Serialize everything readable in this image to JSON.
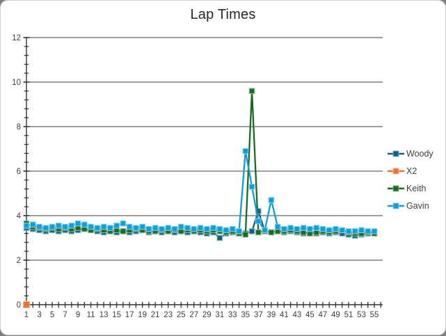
{
  "chart_data": {
    "type": "line",
    "title": "Lap Times",
    "xlabel": "",
    "ylabel": "",
    "x": [
      1,
      2,
      3,
      4,
      5,
      6,
      7,
      8,
      9,
      10,
      11,
      12,
      13,
      14,
      15,
      16,
      17,
      18,
      19,
      20,
      21,
      22,
      23,
      24,
      25,
      26,
      27,
      28,
      29,
      30,
      31,
      32,
      33,
      34,
      35,
      36,
      37,
      38,
      39,
      40,
      41,
      42,
      43,
      44,
      45,
      46,
      47,
      48,
      49,
      50,
      51,
      52,
      53,
      54,
      55
    ],
    "xlim": [
      1,
      56
    ],
    "ylim": [
      0,
      12
    ],
    "y_major_unit": 2,
    "y_minor_unit": 0.4,
    "x_label_step": 2,
    "grid": "horizontal-major",
    "legend_position": "right",
    "series": [
      {
        "name": "Woody",
        "color": "#156082",
        "marker": "square",
        "values": [
          3.45,
          3.4,
          3.35,
          3.3,
          3.35,
          3.3,
          3.35,
          3.3,
          3.35,
          3.4,
          3.35,
          3.3,
          3.25,
          3.3,
          3.25,
          3.3,
          3.25,
          3.3,
          3.35,
          3.25,
          3.3,
          3.25,
          3.3,
          3.25,
          3.3,
          3.25,
          3.3,
          3.25,
          3.2,
          3.25,
          3.0,
          3.2,
          3.25,
          3.2,
          3.2,
          3.3,
          4.2,
          3.3,
          3.25,
          3.3,
          3.25,
          3.3,
          3.25,
          3.2,
          3.25,
          3.2,
          3.25,
          3.2,
          3.25,
          3.2,
          3.15,
          3.1,
          3.15,
          3.2,
          3.25
        ]
      },
      {
        "name": "X2",
        "color": "#E97132",
        "marker": "square",
        "values": [
          0,
          null,
          null,
          null,
          null,
          null,
          null,
          null,
          null,
          null,
          null,
          null,
          null,
          null,
          null,
          null,
          null,
          null,
          null,
          null,
          null,
          null,
          null,
          null,
          null,
          null,
          null,
          null,
          null,
          null,
          null,
          null,
          null,
          null,
          null,
          null,
          null,
          null,
          null,
          null,
          null,
          null,
          null,
          null,
          null,
          null,
          null,
          null,
          null,
          null,
          null,
          null,
          null,
          null,
          null
        ]
      },
      {
        "name": "Keith",
        "color": "#196B24",
        "marker": "square",
        "values": [
          3.65,
          3.5,
          3.45,
          3.4,
          3.45,
          3.4,
          3.45,
          3.4,
          3.45,
          3.4,
          3.35,
          3.4,
          3.35,
          3.3,
          3.35,
          3.3,
          3.35,
          3.4,
          3.35,
          3.3,
          3.3,
          3.35,
          3.3,
          3.35,
          3.3,
          3.35,
          3.3,
          3.35,
          3.3,
          3.35,
          3.3,
          3.25,
          3.3,
          3.2,
          3.15,
          9.6,
          3.25,
          3.3,
          3.25,
          3.3,
          3.3,
          3.35,
          3.3,
          3.25,
          3.2,
          3.25,
          3.3,
          3.25,
          3.3,
          3.35,
          3.25,
          3.2,
          3.2,
          3.25,
          3.2
        ]
      },
      {
        "name": "Gavin",
        "color": "#0F9ED5",
        "marker": "square",
        "values": [
          3.55,
          3.6,
          3.5,
          3.45,
          3.5,
          3.55,
          3.5,
          3.55,
          3.65,
          3.6,
          3.5,
          3.45,
          3.5,
          3.45,
          3.55,
          3.65,
          3.5,
          3.45,
          3.5,
          3.4,
          3.45,
          3.4,
          3.45,
          3.4,
          3.5,
          3.45,
          3.4,
          3.45,
          3.4,
          3.45,
          3.4,
          3.35,
          3.4,
          3.3,
          6.9,
          5.3,
          3.75,
          3.35,
          4.7,
          3.5,
          3.4,
          3.45,
          3.4,
          3.45,
          3.4,
          3.45,
          3.4,
          3.35,
          3.4,
          3.35,
          3.3,
          3.3,
          3.35,
          3.3,
          3.3
        ]
      }
    ]
  },
  "frame": {
    "background": "#ffffff",
    "outside_color": "#7f7f7f",
    "border_color": "#cfcfcf",
    "gridline_color": "#404040",
    "axis_color": "#333333",
    "tick_label_color": "#404040",
    "title_color": "#262626",
    "legend_label_color": "#404040"
  }
}
